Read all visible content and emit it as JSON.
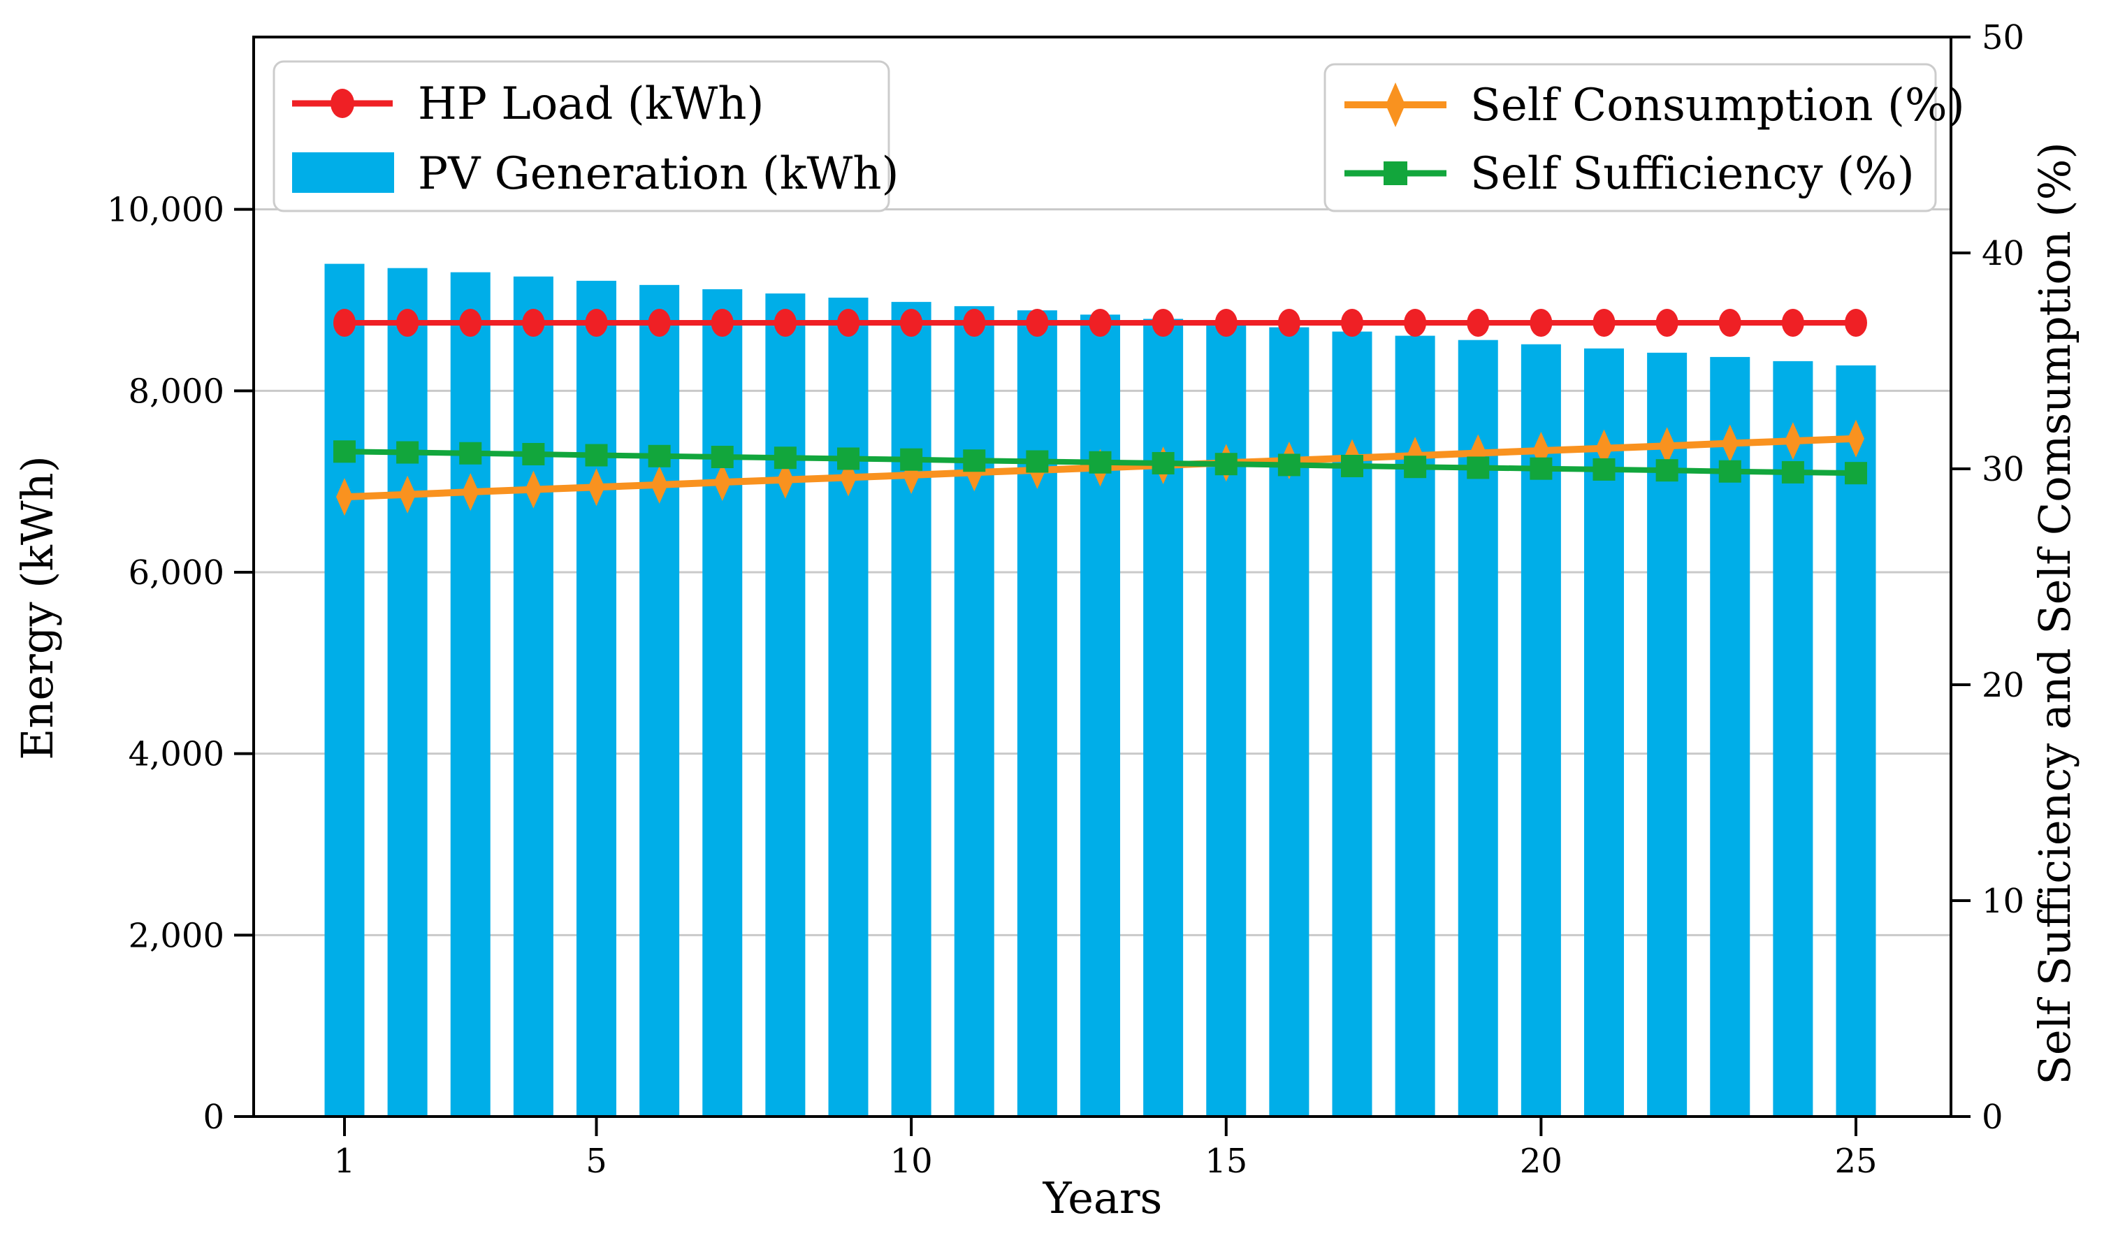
{
  "figure": {
    "background": "#ffffff",
    "xlabel": "Years",
    "ylabel_left": "Energy (kWh)",
    "ylabel_right": "Self Sufficiency and Self Comsumption (%)"
  },
  "legend": [
    {
      "label": "HP Load (kWh)",
      "marker": "red-line-circle"
    },
    {
      "label": "PV Generation (kWh)",
      "marker": "blue-rect-swatch"
    },
    {
      "label": "Self Consumption (%)",
      "marker": "orange-line-thin-diamond"
    },
    {
      "label": "Self Sufficiency (%)",
      "marker": "green-line-square"
    }
  ],
  "chart_data": {
    "type": "bar",
    "subtype": "bar+line, dual y-axis",
    "title": "",
    "xlabel": "Years",
    "ylabel_left": "Energy (kWh)",
    "ylabel_right": "Self Sufficiency and Self Comsumption (%)",
    "x": [
      1,
      2,
      3,
      4,
      5,
      6,
      7,
      8,
      9,
      10,
      11,
      12,
      13,
      14,
      15,
      16,
      17,
      18,
      19,
      20,
      21,
      22,
      23,
      24,
      25
    ],
    "xticks": [
      1,
      5,
      10,
      15,
      20,
      25
    ],
    "ylim_left": [
      0,
      11900
    ],
    "ylim_right": [
      0,
      50
    ],
    "yticks_left_labels": [
      "0",
      "2,000",
      "4,000",
      "6,000",
      "8,000",
      "10,000"
    ],
    "yticks_left_values": [
      0,
      2000,
      4000,
      6000,
      8000,
      10000
    ],
    "yticks_right_labels": [
      "0",
      "10",
      "20",
      "30",
      "40",
      "50"
    ],
    "yticks_right_values": [
      0,
      10,
      20,
      30,
      40,
      50
    ],
    "grid": "horizontal gridlines at left-axis ticks, drawn behind bars",
    "legend_positions": {
      "left_box": "upper left",
      "right_box": "upper right"
    },
    "series": [
      {
        "name": "HP Load (kWh)",
        "type": "line",
        "axis": "left",
        "marker": "circle",
        "values": [
          8750,
          8750,
          8750,
          8750,
          8750,
          8750,
          8750,
          8750,
          8750,
          8750,
          8750,
          8750,
          8750,
          8750,
          8750,
          8750,
          8750,
          8750,
          8750,
          8750,
          8750,
          8750,
          8750,
          8750,
          8750
        ]
      },
      {
        "name": "PV Generation (kWh)",
        "type": "bar",
        "axis": "left",
        "values": [
          9400,
          9353,
          9307,
          9260,
          9213,
          9167,
          9120,
          9073,
          9027,
          8980,
          8933,
          8887,
          8840,
          8793,
          8747,
          8700,
          8653,
          8607,
          8560,
          8513,
          8467,
          8420,
          8373,
          8327,
          8280
        ]
      },
      {
        "name": "Self Consumption (%)",
        "type": "line",
        "axis": "right",
        "marker": "thin-diamond",
        "values": [
          28.7,
          28.81,
          28.93,
          29.04,
          29.15,
          29.26,
          29.38,
          29.49,
          29.6,
          29.71,
          29.83,
          29.94,
          30.05,
          30.16,
          30.28,
          30.39,
          30.5,
          30.61,
          30.73,
          30.84,
          30.95,
          31.06,
          31.18,
          31.29,
          31.4
        ]
      },
      {
        "name": "Self Sufficiency (%)",
        "type": "line",
        "axis": "right",
        "marker": "square",
        "values": [
          30.8,
          30.76,
          30.72,
          30.68,
          30.63,
          30.59,
          30.55,
          30.51,
          30.47,
          30.43,
          30.38,
          30.34,
          30.3,
          30.26,
          30.22,
          30.18,
          30.13,
          30.09,
          30.05,
          30.01,
          29.97,
          29.93,
          29.88,
          29.84,
          29.8
        ]
      }
    ],
    "colors": {
      "bar_blue": "#00AEE8",
      "line_red": "#EF2025",
      "line_orange": "#F9921F",
      "line_green": "#12A63C",
      "grid": "#C9C9C9",
      "spine": "#000000",
      "legend_border": "#CCCCCC"
    }
  }
}
